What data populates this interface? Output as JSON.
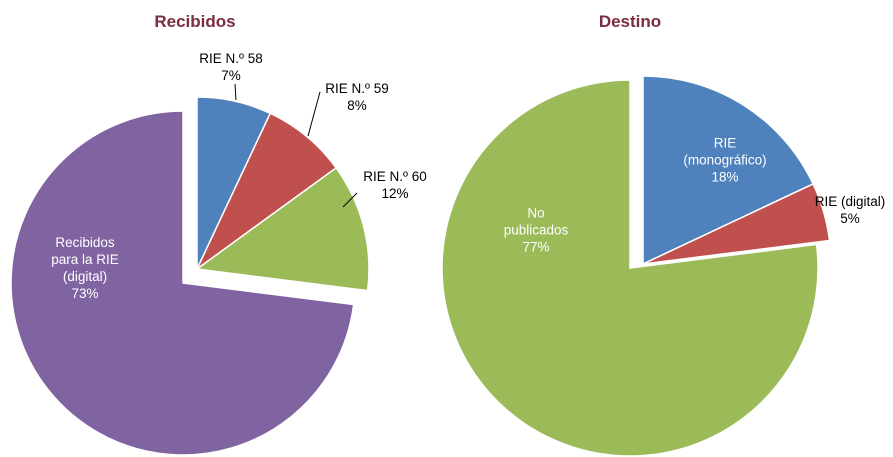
{
  "chart_data": [
    {
      "type": "pie",
      "title": "Recibidos",
      "categories": [
        "RIE N.º 58",
        "RIE N.º 59",
        "RIE N.º 60",
        "Recibidos para la RIE (digital)"
      ],
      "values": [
        7,
        8,
        12,
        73
      ],
      "value_labels": [
        "7%",
        "8%",
        "12%",
        "73%"
      ],
      "colors": [
        "#4f81bd",
        "#c0504d",
        "#9bbb59",
        "#8064a2"
      ]
    },
    {
      "type": "pie",
      "title": "Destino",
      "categories": [
        "RIE (monográfico)",
        "RIE (digital)",
        "No publicados"
      ],
      "values": [
        18,
        5,
        77
      ],
      "value_labels": [
        "18%",
        "5%",
        "77%"
      ],
      "colors": [
        "#4f81bd",
        "#c0504d",
        "#9bbb59"
      ]
    }
  ]
}
